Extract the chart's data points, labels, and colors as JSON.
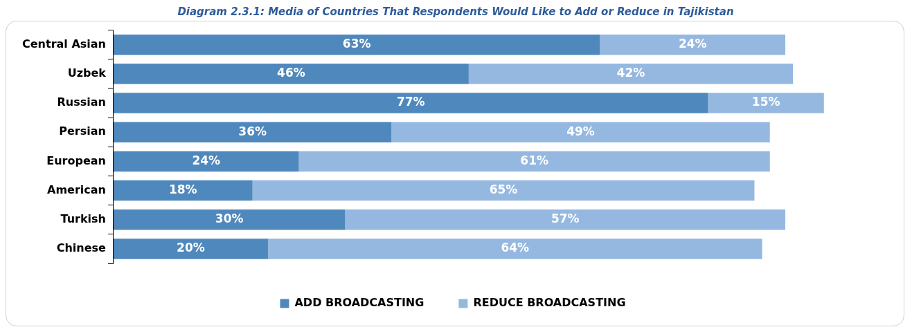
{
  "chart_data": {
    "type": "bar",
    "orientation": "horizontal",
    "stacked": true,
    "title": "Diagram 2.3.1: Media of Countries That Respondents Would Like to Add or Reduce in Tajikistan",
    "categories": [
      "Central Asian",
      "Uzbek",
      "Russian",
      "Persian",
      "European",
      "American",
      "Turkish",
      "Chinese"
    ],
    "series": [
      {
        "name": "ADD BROADCASTING",
        "color": "#4f88bd",
        "values": [
          63,
          46,
          77,
          36,
          24,
          18,
          30,
          20
        ],
        "value_labels": [
          "63%",
          "46%",
          "77%",
          "36%",
          "24%",
          "18%",
          "30%",
          "20%"
        ]
      },
      {
        "name": "REDUCE BROADCASTING",
        "color": "#95b8e0",
        "values": [
          24,
          42,
          15,
          49,
          61,
          65,
          57,
          64
        ],
        "value_labels": [
          "24%",
          "42%",
          "15%",
          "49%",
          "61%",
          "65%",
          "57%",
          "64%"
        ]
      }
    ],
    "legend": "bottom"
  }
}
